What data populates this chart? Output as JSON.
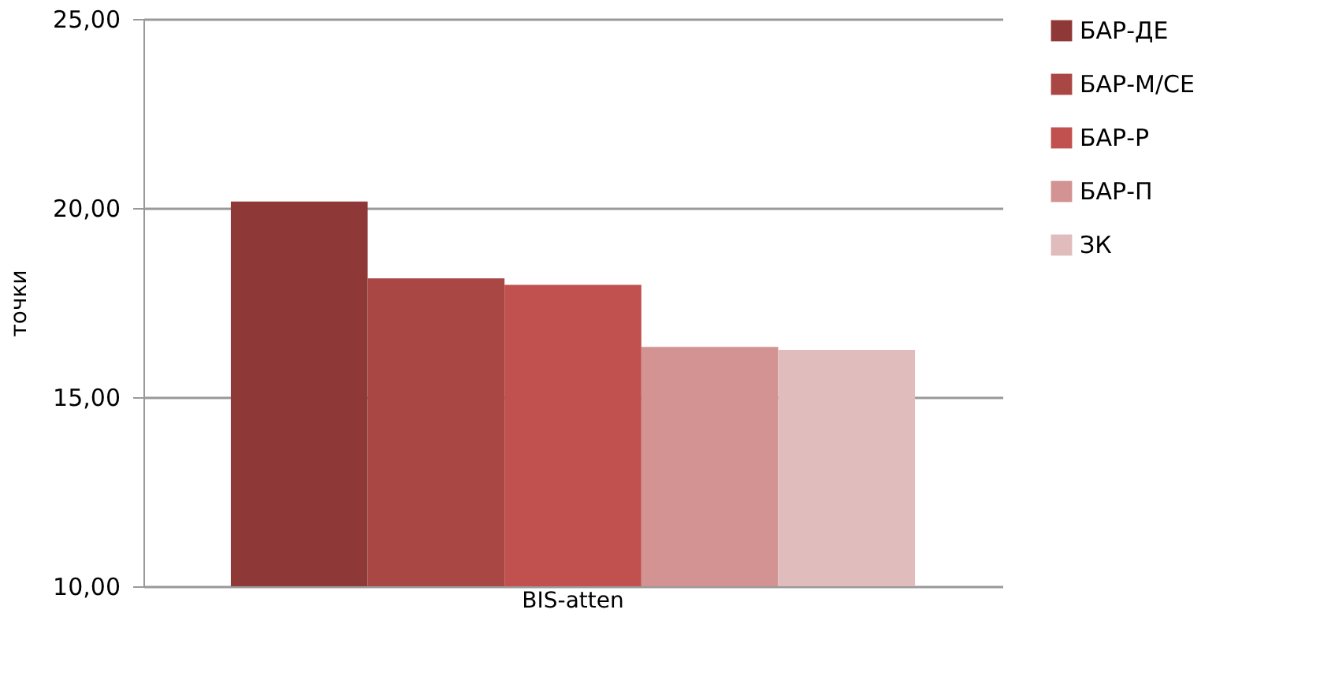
{
  "chart_data": {
    "type": "bar",
    "ylabel": "точки",
    "categories": [
      "BIS-atten"
    ],
    "series": [
      {
        "name": "БАР-ДЕ",
        "color": "#8e3937",
        "values": [
          20.17
        ]
      },
      {
        "name": "БАР-М/СЕ",
        "color": "#a94745",
        "values": [
          18.14
        ]
      },
      {
        "name": "БАР-Р",
        "color": "#c0514f",
        "values": [
          17.97
        ]
      },
      {
        "name": "БАР-П",
        "color": "#d29392",
        "values": [
          16.33
        ]
      },
      {
        "name": "ЗК",
        "color": "#e0bcbc",
        "values": [
          16.25
        ]
      }
    ],
    "ylim": [
      10,
      25
    ],
    "yticks": [
      {
        "value": 10,
        "label": "10,00"
      },
      {
        "value": 15,
        "label": "15,00"
      },
      {
        "value": 20,
        "label": "20,00"
      },
      {
        "value": 25,
        "label": "25,00"
      }
    ],
    "grid": "y",
    "legend": "right"
  }
}
